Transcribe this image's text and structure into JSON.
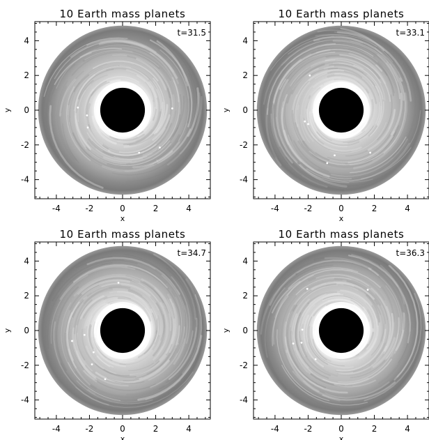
{
  "chart_data": [
    {
      "type": "scatter",
      "title": "10 Earth mass planets",
      "time_label": "t=31.5",
      "xlabel": "x",
      "ylabel": "y",
      "xlim": [
        -5.3,
        5.3
      ],
      "ylim": [
        -5.1,
        5.1
      ],
      "xticks": [
        -4,
        -2,
        0,
        2,
        4
      ],
      "yticks": [
        -4,
        -2,
        0,
        2,
        4
      ],
      "disk": {
        "inner_radius": 1.35,
        "outer_radius": 5.1
      },
      "planets": [
        [
          -2.7,
          0.15
        ],
        [
          -2.15,
          -0.3
        ],
        [
          -2.1,
          -1.0
        ],
        [
          1.0,
          -2.45
        ],
        [
          2.25,
          -2.15
        ],
        [
          3.0,
          0.1
        ]
      ]
    },
    {
      "type": "scatter",
      "title": "10 Earth mass planets",
      "time_label": "t=33.1",
      "xlabel": "x",
      "ylabel": "y",
      "xlim": [
        -5.3,
        5.3
      ],
      "ylim": [
        -5.1,
        5.1
      ],
      "xticks": [
        -4,
        -2,
        0,
        2,
        4
      ],
      "yticks": [
        -4,
        -2,
        0,
        2,
        4
      ],
      "disk": {
        "inner_radius": 1.35,
        "outer_radius": 5.1
      },
      "planets": [
        [
          -1.9,
          2.0
        ],
        [
          -2.2,
          -0.65
        ],
        [
          -2.0,
          -0.8
        ],
        [
          -0.4,
          -2.6
        ],
        [
          -0.85,
          -3.05
        ],
        [
          1.75,
          -2.45
        ]
      ]
    },
    {
      "type": "scatter",
      "title": "10 Earth mass planets",
      "time_label": "t=34.7",
      "xlabel": "x",
      "ylabel": "y",
      "xlim": [
        -5.3,
        5.3
      ],
      "ylim": [
        -5.1,
        5.1
      ],
      "xticks": [
        -4,
        -2,
        0,
        2,
        4
      ],
      "yticks": [
        -4,
        -2,
        0,
        2,
        4
      ],
      "disk": {
        "inner_radius": 1.35,
        "outer_radius": 5.1
      },
      "planets": [
        [
          -0.25,
          2.75
        ],
        [
          -3.05,
          -0.6
        ],
        [
          -2.3,
          -0.25
        ],
        [
          -1.75,
          -1.25
        ],
        [
          -1.85,
          -1.95
        ],
        [
          -1.05,
          -2.8
        ]
      ]
    },
    {
      "type": "scatter",
      "title": "10 Earth mass planets",
      "time_label": "t=36.3",
      "xlabel": "x",
      "ylabel": "y",
      "xlim": [
        -5.3,
        5.3
      ],
      "ylim": [
        -5.1,
        5.1
      ],
      "xticks": [
        -4,
        -2,
        0,
        2,
        4
      ],
      "yticks": [
        -4,
        -2,
        0,
        2,
        4
      ],
      "disk": {
        "inner_radius": 1.35,
        "outer_radius": 5.1
      },
      "planets": [
        [
          -2.05,
          2.4
        ],
        [
          1.6,
          2.35
        ],
        [
          -2.9,
          -0.75
        ],
        [
          -2.4,
          -0.7
        ],
        [
          -2.35,
          0.05
        ],
        [
          -1.55,
          -1.65
        ]
      ]
    }
  ]
}
